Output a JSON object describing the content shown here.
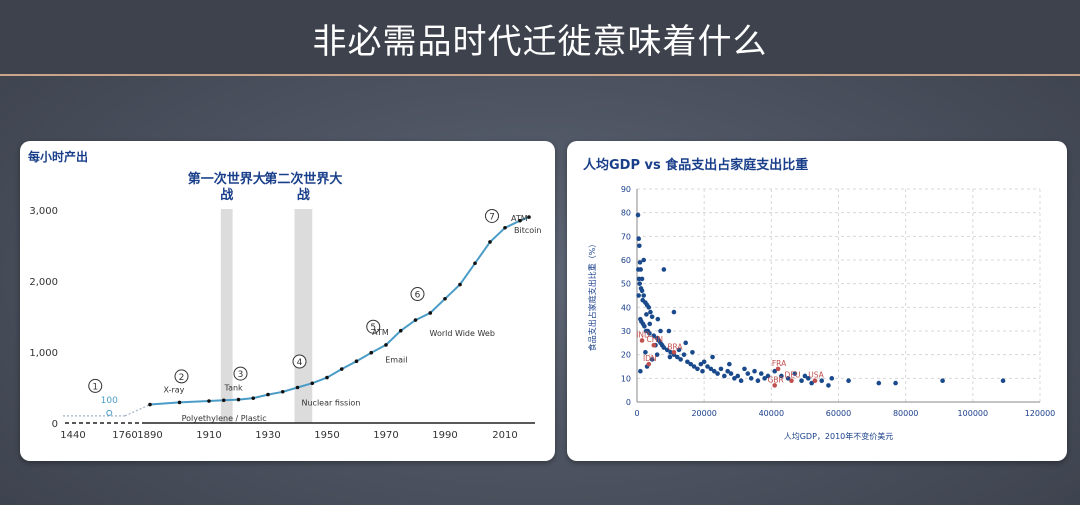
{
  "slide": {
    "title": "非必需品时代迁徙意味着什么"
  },
  "chart_data": [
    {
      "type": "line",
      "title": "每小时产出",
      "x_ticks": [
        "1440",
        "1760",
        "1890",
        "1910",
        "1930",
        "1950",
        "1970",
        "1990",
        "2010"
      ],
      "y_ticks": [
        "0",
        "1,000",
        "2,000",
        "3,000"
      ],
      "ylim": [
        0,
        3000
      ],
      "series": [
        {
          "points": [
            [
              1440,
              100
            ],
            [
              1760,
              100
            ],
            [
              1890,
              260
            ],
            [
              1900,
              290
            ],
            [
              1910,
              310
            ],
            [
              1915,
              320
            ],
            [
              1920,
              330
            ],
            [
              1925,
              350
            ],
            [
              1930,
              400
            ],
            [
              1935,
              440
            ],
            [
              1940,
              500
            ],
            [
              1945,
              560
            ],
            [
              1950,
              640
            ],
            [
              1955,
              760
            ],
            [
              1960,
              870
            ],
            [
              1965,
              990
            ],
            [
              1970,
              1100
            ],
            [
              1975,
              1300
            ],
            [
              1980,
              1450
            ],
            [
              1985,
              1550
            ],
            [
              1990,
              1750
            ],
            [
              1995,
              1950
            ],
            [
              2000,
              2250
            ],
            [
              2005,
              2550
            ],
            [
              2010,
              2750
            ],
            [
              2015,
              2850
            ],
            [
              2018,
              2900
            ]
          ]
        }
      ],
      "shaded_periods": [
        {
          "label": "第一次世界大战",
          "label_lines": [
            "第一次世界大",
            "战"
          ],
          "from": 1914,
          "to": 1918
        },
        {
          "label": "第二次世界大战",
          "label_lines": [
            "第二次世界大",
            "战"
          ],
          "from": 1939,
          "to": 1945
        }
      ],
      "milestones": [
        {
          "num": "1",
          "x": 1700,
          "y": 100,
          "value_label": "100",
          "text": ""
        },
        {
          "num": "2",
          "x": 1900,
          "y": 290,
          "text": "X-ray"
        },
        {
          "num": "",
          "x": 1898,
          "y": 280,
          "text": "Polyethylene / Plastic"
        },
        {
          "num": "3",
          "x": 1920,
          "y": 330,
          "text": "Tank"
        },
        {
          "num": "4",
          "x": 1940,
          "y": 500,
          "text": "Nuclear fission"
        },
        {
          "num": "5",
          "x": 1965,
          "y": 990,
          "text": "Email"
        },
        {
          "num": "",
          "x": 1968,
          "y": 1100,
          "text": "ATM"
        },
        {
          "num": "6",
          "x": 1980,
          "y": 1450,
          "text": "World Wide Web"
        },
        {
          "num": "7",
          "x": 2005,
          "y": 2550,
          "text": "Bitcoin"
        },
        {
          "num": "",
          "x": 2010,
          "y": 2750,
          "text": "ATM"
        }
      ]
    },
    {
      "type": "scatter",
      "title": "人均GDP vs 食品支出占家庭支出比重",
      "xlabel": "人均GDP，2010年不变价美元",
      "ylabel": "食品支出占家庭支出比重（%）",
      "xlim": [
        0,
        120000
      ],
      "ylim": [
        0,
        90
      ],
      "x_ticks": [
        "0",
        "20000",
        "40000",
        "60000",
        "80000",
        "100000",
        "120000"
      ],
      "y_ticks": [
        "0",
        "10",
        "20",
        "30",
        "40",
        "50",
        "60",
        "70",
        "80",
        "90"
      ],
      "grid": true,
      "labeled_points": [
        {
          "label": "FRA",
          "x": 42000,
          "y": 14
        },
        {
          "label": "GBR",
          "x": 41000,
          "y": 7
        },
        {
          "label": "DEU",
          "x": 46000,
          "y": 9
        },
        {
          "label": "USA",
          "x": 53000,
          "y": 9
        },
        {
          "label": "CHN",
          "x": 5000,
          "y": 24
        },
        {
          "label": "IND",
          "x": 1500,
          "y": 26
        },
        {
          "label": "BRA",
          "x": 11000,
          "y": 21
        },
        {
          "label": "IDN",
          "x": 3500,
          "y": 16
        }
      ],
      "points": [
        [
          300,
          79
        ],
        [
          500,
          69
        ],
        [
          700,
          66
        ],
        [
          900,
          59
        ],
        [
          1100,
          56
        ],
        [
          400,
          56
        ],
        [
          600,
          52
        ],
        [
          800,
          50
        ],
        [
          1200,
          48
        ],
        [
          1500,
          47
        ],
        [
          2000,
          45
        ],
        [
          1700,
          43
        ],
        [
          2500,
          42
        ],
        [
          3000,
          41
        ],
        [
          3500,
          40
        ],
        [
          4000,
          38
        ],
        [
          4500,
          36
        ],
        [
          1000,
          35
        ],
        [
          1300,
          34
        ],
        [
          1800,
          33
        ],
        [
          2200,
          32
        ],
        [
          2700,
          30
        ],
        [
          3200,
          30
        ],
        [
          3700,
          29
        ],
        [
          5000,
          28
        ],
        [
          6000,
          27
        ],
        [
          6500,
          26
        ],
        [
          7000,
          25
        ],
        [
          7500,
          24
        ],
        [
          8000,
          23
        ],
        [
          9000,
          22
        ],
        [
          10000,
          21
        ],
        [
          11000,
          20
        ],
        [
          12000,
          19
        ],
        [
          13000,
          18
        ],
        [
          14000,
          20
        ],
        [
          15000,
          17
        ],
        [
          16000,
          16
        ],
        [
          17000,
          15
        ],
        [
          18000,
          14
        ],
        [
          19000,
          16
        ],
        [
          20000,
          17
        ],
        [
          21000,
          15
        ],
        [
          22000,
          14
        ],
        [
          23000,
          13
        ],
        [
          24000,
          12
        ],
        [
          25000,
          14
        ],
        [
          26000,
          11
        ],
        [
          27000,
          13
        ],
        [
          28000,
          12
        ],
        [
          29000,
          10
        ],
        [
          30000,
          11
        ],
        [
          31000,
          9
        ],
        [
          32000,
          14
        ],
        [
          33000,
          12
        ],
        [
          34000,
          10
        ],
        [
          35000,
          13
        ],
        [
          36000,
          9
        ],
        [
          37000,
          12
        ],
        [
          38000,
          10
        ],
        [
          39000,
          11
        ],
        [
          41000,
          13
        ],
        [
          43000,
          11
        ],
        [
          45000,
          10
        ],
        [
          47000,
          12
        ],
        [
          49000,
          9
        ],
        [
          50000,
          11
        ],
        [
          51000,
          10
        ],
        [
          52000,
          8
        ],
        [
          55000,
          9
        ],
        [
          57000,
          7
        ],
        [
          58000,
          10
        ],
        [
          63000,
          9
        ],
        [
          72000,
          8
        ],
        [
          77000,
          8
        ],
        [
          91000,
          9
        ],
        [
          109000,
          9
        ],
        [
          8000,
          56
        ],
        [
          11000,
          38
        ],
        [
          2000,
          60
        ],
        [
          1500,
          52
        ],
        [
          9500,
          30
        ],
        [
          14500,
          25
        ],
        [
          12500,
          22
        ],
        [
          6000,
          20
        ],
        [
          4500,
          18
        ],
        [
          3000,
          15
        ],
        [
          1000,
          13
        ],
        [
          2500,
          21
        ],
        [
          5500,
          24
        ],
        [
          7000,
          30
        ],
        [
          500,
          45
        ],
        [
          2800,
          37
        ],
        [
          3800,
          33
        ],
        [
          6200,
          35
        ],
        [
          9800,
          19
        ],
        [
          16500,
          21
        ],
        [
          19500,
          13
        ],
        [
          22500,
          19
        ],
        [
          27500,
          16
        ]
      ]
    }
  ]
}
